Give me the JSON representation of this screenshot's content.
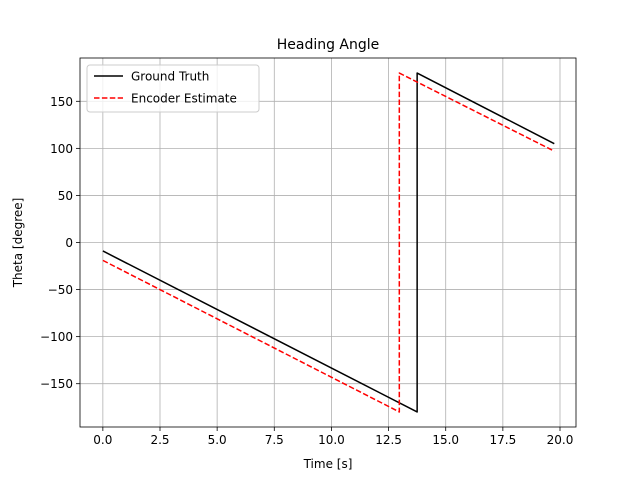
{
  "chart_data": {
    "type": "line",
    "title": "Heading Angle",
    "xlabel": "Time [s]",
    "ylabel": "Theta [degree]",
    "xlim": [
      -1.0,
      20.7
    ],
    "ylim": [
      -196,
      196
    ],
    "xticks": [
      0.0,
      2.5,
      5.0,
      7.5,
      10.0,
      12.5,
      15.0,
      17.5,
      20.0
    ],
    "xtick_labels": [
      "0.0",
      "2.5",
      "5.0",
      "7.5",
      "10.0",
      "12.5",
      "15.0",
      "17.5",
      "20.0"
    ],
    "yticks": [
      -150,
      -100,
      -50,
      0,
      50,
      100,
      150
    ],
    "ytick_labels": [
      "−150",
      "−100",
      "−50",
      "0",
      "50",
      "100",
      "150"
    ],
    "grid": true,
    "legend": "upper-left",
    "series": [
      {
        "name": "Ground Truth",
        "color": "#000000",
        "dash": "solid",
        "points": [
          [
            0.0,
            -9
          ],
          [
            13.75,
            -180
          ],
          [
            13.75,
            180
          ],
          [
            19.75,
            105
          ]
        ]
      },
      {
        "name": "Encoder Estimate",
        "color": "#ff0000",
        "dash": "dashed",
        "points": [
          [
            0.0,
            -19
          ],
          [
            12.97,
            -180
          ],
          [
            12.97,
            180
          ],
          [
            19.75,
            97
          ]
        ]
      }
    ]
  }
}
